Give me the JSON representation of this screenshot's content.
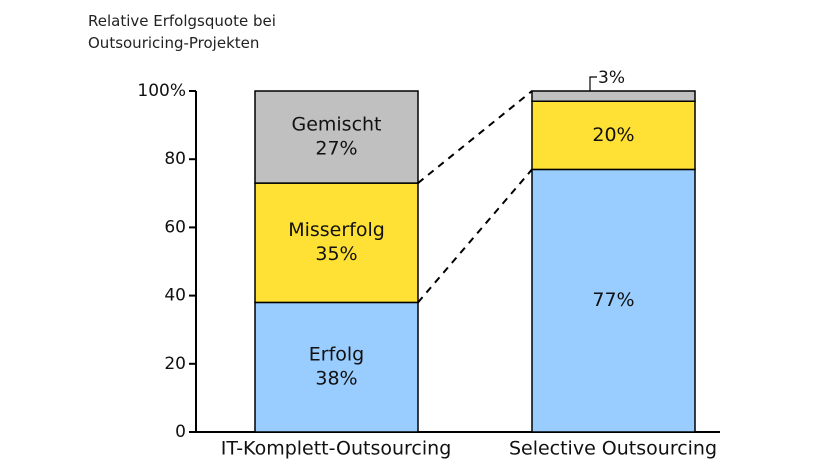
{
  "chart_data": {
    "type": "bar",
    "stacked": true,
    "title_lines": [
      "Relative Erfolgsquote bei",
      "Outsouricing-Projekten"
    ],
    "xlabel": "",
    "ylabel": "",
    "ylim": [
      0,
      100
    ],
    "yticks": [
      {
        "value": 0,
        "label": "0"
      },
      {
        "value": 20,
        "label": "20"
      },
      {
        "value": 40,
        "label": "40"
      },
      {
        "value": 60,
        "label": "60"
      },
      {
        "value": 80,
        "label": "80"
      },
      {
        "value": 100,
        "label": "100%"
      }
    ],
    "grid": false,
    "legend": "none",
    "categories": [
      "IT-Komplett-Outsourcing",
      "Selective Outsourcing"
    ],
    "bars": [
      {
        "category": "IT-Komplett-Outsourcing",
        "segments": [
          {
            "value": 38,
            "color": "#99ccff",
            "label_lines": [
              "Erfolg",
              "38%"
            ]
          },
          {
            "value": 35,
            "color": "#ffe135",
            "label_lines": [
              "Misserfolg",
              "35%"
            ]
          },
          {
            "value": 27,
            "color": "#c0c0c0",
            "label_lines": [
              "Gemischt",
              "27%"
            ]
          }
        ]
      },
      {
        "category": "Selective Outsourcing",
        "segments": [
          {
            "value": 77,
            "color": "#99ccff",
            "label_lines": [
              "77%"
            ]
          },
          {
            "value": 20,
            "color": "#ffe135",
            "label_lines": [
              "20%"
            ]
          },
          {
            "value": 3,
            "color": "#c0c0c0",
            "label_lines": [
              "3%"
            ],
            "callout": true
          }
        ]
      }
    ]
  }
}
